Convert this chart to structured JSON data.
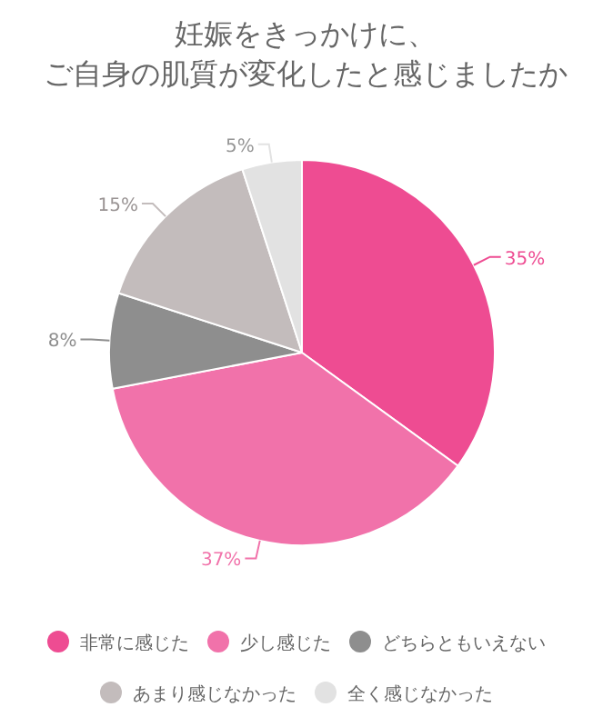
{
  "chart_data": {
    "type": "pie",
    "title": "妊娠をきっかけに、ご自身の肌質が変化したと感じましたか",
    "categories": [
      "非常に感じた",
      "少し感じた",
      "どちらともいえない",
      "あまり感じなかった",
      "全く感じなかった"
    ],
    "values": [
      35,
      37,
      8,
      15,
      5
    ],
    "colors": [
      "#ee4c92",
      "#f172aa",
      "#8e8e8e",
      "#c3bcbc",
      "#e2e2e2"
    ],
    "value_labels": [
      "35%",
      "37%",
      "8%",
      "15%",
      "5%"
    ],
    "legend": "bottom"
  }
}
